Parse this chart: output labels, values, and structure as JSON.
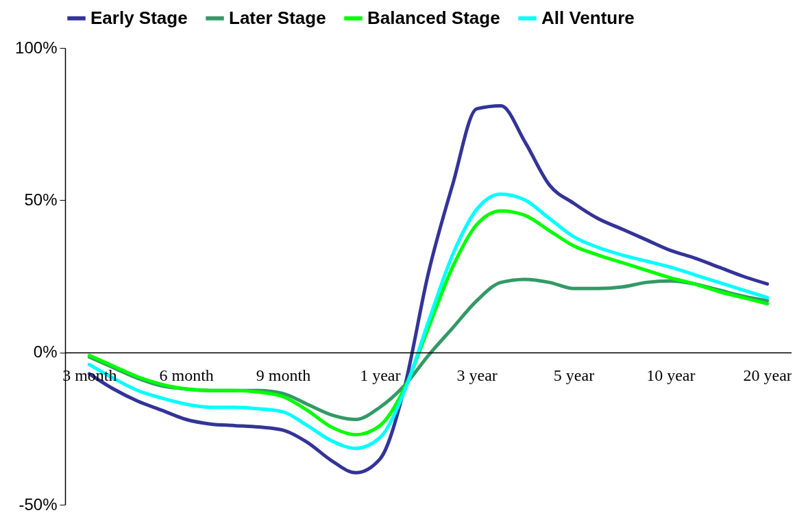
{
  "chart_data": {
    "type": "line",
    "categories": [
      "3 month",
      null,
      null,
      null,
      "6 month",
      null,
      null,
      null,
      "9 month",
      null,
      null,
      null,
      "1 year",
      null,
      null,
      null,
      "3 year",
      null,
      null,
      null,
      "5 year",
      null,
      null,
      null,
      "10 year",
      null,
      null,
      null,
      "20 year"
    ],
    "series": [
      {
        "name": "Early Stage",
        "color": "#333399",
        "values": [
          -7,
          -12,
          -16,
          -19,
          -22,
          -23.5,
          -24,
          -24.5,
          -25.5,
          -29.5,
          -35.5,
          -39.5,
          -35,
          -12,
          26,
          55,
          80,
          81,
          69,
          55,
          49,
          44,
          40.5,
          37,
          33.5,
          31,
          28,
          25,
          22.5
        ]
      },
      {
        "name": "Later Stage",
        "color": "#339966",
        "values": [
          -1.5,
          -5,
          -8.5,
          -11,
          -12,
          -12.5,
          -12.5,
          -12.5,
          -13.5,
          -17,
          -20.5,
          -22,
          -18,
          -11,
          -1,
          8,
          17,
          23,
          24,
          23,
          21,
          21,
          21.5,
          23,
          23.5,
          22.5,
          20.5,
          18.5,
          17
        ]
      },
      {
        "name": "Balanced Stage",
        "color": "#00ff00",
        "values": [
          -1,
          -4.5,
          -8,
          -10.5,
          -12,
          -12.5,
          -12.5,
          -13,
          -14.5,
          -19,
          -24.5,
          -27,
          -24,
          -12,
          8,
          28,
          42,
          46.5,
          45,
          40,
          35,
          32,
          29.5,
          27,
          24.5,
          22.5,
          20,
          18,
          16
        ]
      },
      {
        "name": "All Venture",
        "color": "#00ffff",
        "values": [
          -4,
          -8.5,
          -12.5,
          -15,
          -17,
          -18,
          -18,
          -18.5,
          -19.5,
          -24,
          -29,
          -31.5,
          -28,
          -13,
          10,
          32,
          47,
          52,
          50,
          44,
          38,
          34.5,
          32,
          30,
          28,
          25.5,
          23,
          20.5,
          18
        ]
      }
    ],
    "ylim": [
      -50,
      100
    ],
    "yticks": [
      {
        "value": -50,
        "label": "-50%"
      },
      {
        "value": 0,
        "label": "0%"
      },
      {
        "value": 50,
        "label": "50%"
      },
      {
        "value": 100,
        "label": "100%"
      }
    ],
    "grid": false,
    "legend": "top",
    "marker": "none",
    "line_style": "solid"
  }
}
